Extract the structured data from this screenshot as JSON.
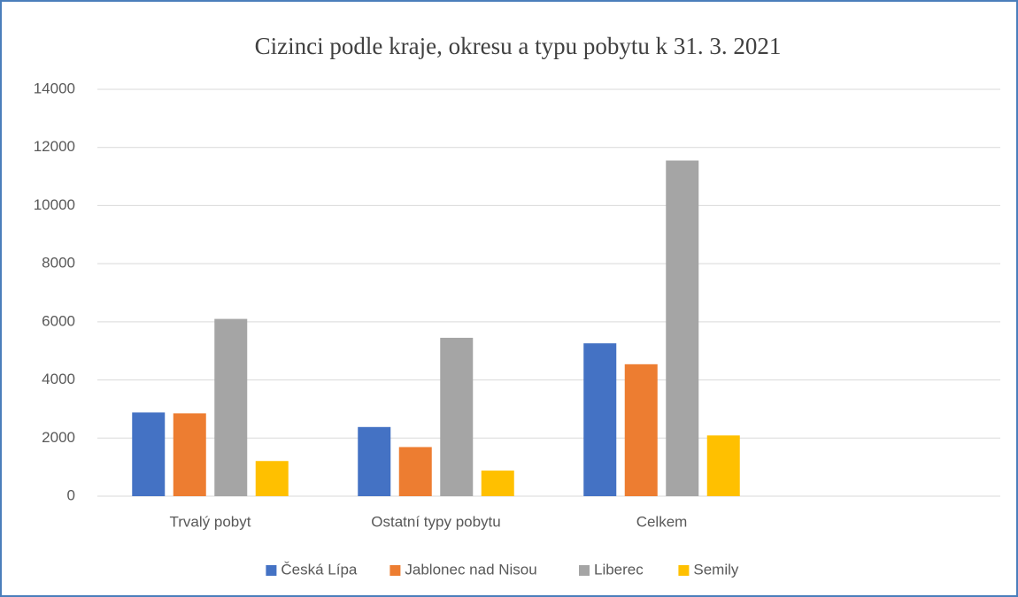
{
  "chart_data": {
    "type": "bar",
    "title": "Cizinci podle kraje, okresu a typu pobytu k 31. 3. 2021",
    "categories": [
      "Trvalý pobyt",
      "Ostatní typy pobytu",
      "Celkem",
      null
    ],
    "series": [
      {
        "name": "Česká Lípa",
        "color": "#4472c4",
        "values": [
          2880,
          2380,
          5260,
          null
        ]
      },
      {
        "name": "Jablonec nad Nisou",
        "color": "#ed7d31",
        "values": [
          2850,
          1690,
          4540,
          null
        ]
      },
      {
        "name": "Liberec",
        "color": "#a5a5a5",
        "values": [
          6100,
          5450,
          11550,
          null
        ]
      },
      {
        "name": "Semily",
        "color": "#ffc000",
        "values": [
          1210,
          880,
          2090,
          null
        ]
      }
    ],
    "ylim": [
      0,
      14000
    ],
    "yticks": [
      0,
      2000,
      4000,
      6000,
      8000,
      10000,
      12000,
      14000
    ],
    "grid": true,
    "legend": "bottom"
  }
}
